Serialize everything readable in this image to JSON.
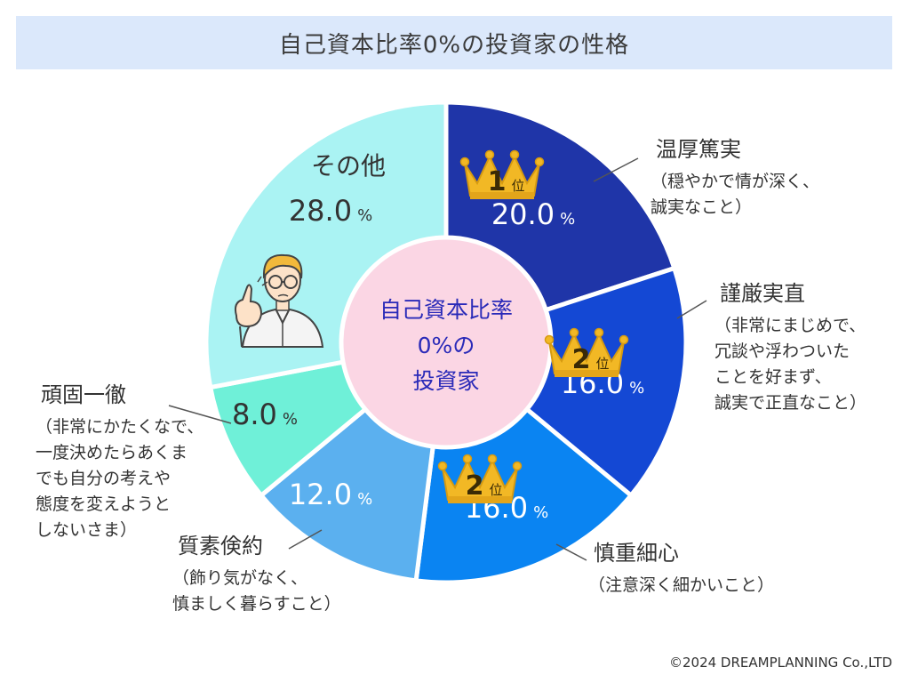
{
  "chart_data": {
    "type": "pie",
    "title": "自己資本比率0%の投資家の性格",
    "center_label": [
      "自己資本比率",
      "0%の",
      "投資家"
    ],
    "unit": "%",
    "slices": [
      {
        "name": "温厚篤実",
        "value": 20.0,
        "value_label": "20.0",
        "color": "#1f35a8",
        "text_color": "#ffffff",
        "rank": "1位",
        "description": [
          "（穏やかで情が深く、",
          "誠実なこと）"
        ]
      },
      {
        "name": "謹厳実直",
        "value": 16.0,
        "value_label": "16.0",
        "color": "#1448d4",
        "text_color": "#ffffff",
        "rank": "2位",
        "description": [
          "（非常にまじめで、",
          "冗談や浮わついた",
          "ことを好まず、",
          "誠実で正直なこと）"
        ]
      },
      {
        "name": "慎重細心",
        "value": 16.0,
        "value_label": "16.0",
        "color": "#0a84f2",
        "text_color": "#ffffff",
        "rank": "2位",
        "description": [
          "（注意深く細かいこと）"
        ]
      },
      {
        "name": "質素倹約",
        "value": 12.0,
        "value_label": "12.0",
        "color": "#5bb0ef",
        "text_color": "#ffffff",
        "rank": "",
        "description": [
          "（飾り気がなく、",
          "慎ましく暮らすこと）"
        ]
      },
      {
        "name": "頑固一徹",
        "value": 8.0,
        "value_label": "8.0",
        "color": "#6ff0d8",
        "text_color": "#333333",
        "rank": "",
        "description": [
          "（非常にかたくなで、",
          "一度決めたらあくま",
          "でも自分の考えや",
          "態度を変えようと",
          "しないさま）"
        ]
      },
      {
        "name": "その他",
        "value": 28.0,
        "value_label": "28.0",
        "color": "#aaf3f3",
        "text_color": "#333333",
        "rank": "",
        "description": []
      }
    ],
    "center_color": "#fbd6e4",
    "center_text_color": "#2a2ab8",
    "legend": "none"
  },
  "icons": {
    "crown": "crown-icon",
    "person": "thinking-person-icon"
  },
  "footer": {
    "copyright": "©2024 DREAMPLANNING Co.,LTD"
  }
}
